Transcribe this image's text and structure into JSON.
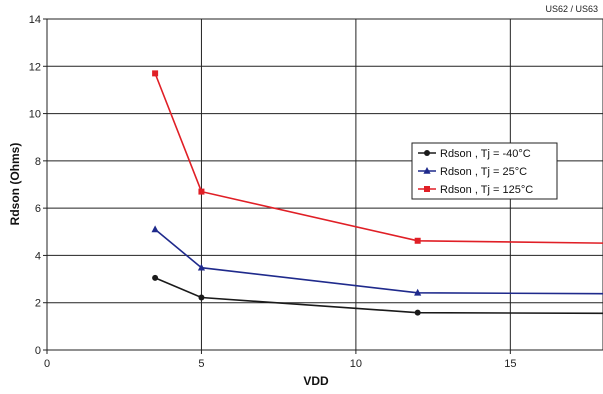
{
  "corner_tag": "US62 / US63",
  "chart_data": {
    "type": "line",
    "xlabel": "VDD",
    "ylabel": "Rdson (Ohms)",
    "xlim": [
      0,
      18
    ],
    "ylim": [
      0,
      14
    ],
    "xticks": [
      0,
      5,
      10,
      15
    ],
    "yticks": [
      0,
      2,
      4,
      6,
      8,
      10,
      12,
      14
    ],
    "grid": true,
    "legend_position": "right",
    "series": [
      {
        "name": "Rdson , Tj = -40°C",
        "color": "#1a1a1a",
        "marker": "circle",
        "x": [
          3.5,
          5,
          12,
          18
        ],
        "y": [
          3.05,
          2.22,
          1.58,
          1.55
        ]
      },
      {
        "name": "Rdson , Tj = 25°C",
        "color": "#1f2a8c",
        "marker": "triangle",
        "x": [
          3.5,
          5,
          12,
          18
        ],
        "y": [
          5.1,
          3.48,
          2.42,
          2.38
        ]
      },
      {
        "name": "Rdson , Tj = 125°C",
        "color": "#e01f26",
        "marker": "square",
        "x": [
          3.5,
          5,
          12,
          18
        ],
        "y": [
          11.7,
          6.7,
          4.62,
          4.52
        ]
      }
    ]
  }
}
